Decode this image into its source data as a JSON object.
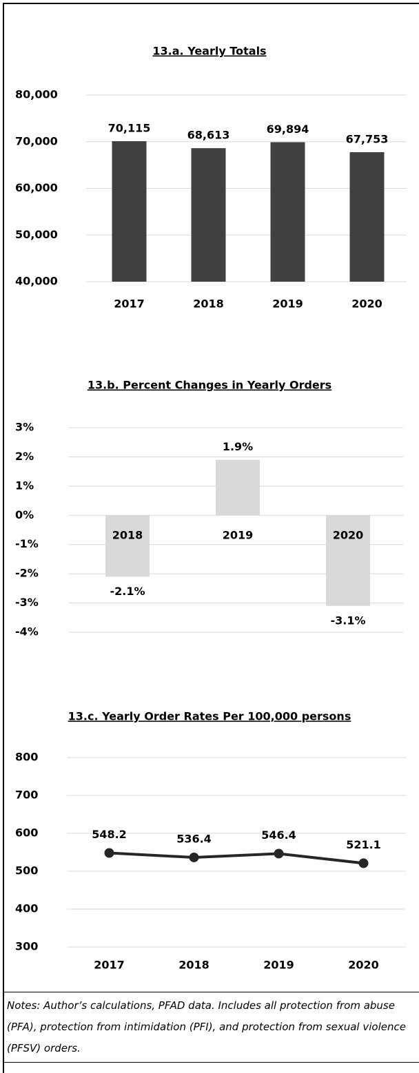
{
  "chart_data": [
    {
      "type": "bar",
      "title": "13.a. Yearly Totals",
      "categories": [
        "2017",
        "2018",
        "2019",
        "2020"
      ],
      "values": [
        70115,
        68613,
        69894,
        67753
      ],
      "value_labels": [
        "70,115",
        "68,613",
        "69,894",
        "67,753"
      ],
      "color": "#404040",
      "ylim": [
        40000,
        80000
      ],
      "yticks": [
        {
          "value": 40000,
          "label": "40,000"
        },
        {
          "value": 50000,
          "label": "50,000"
        },
        {
          "value": 60000,
          "label": "60,000"
        },
        {
          "value": 70000,
          "label": "70,000"
        },
        {
          "value": 80000,
          "label": "80,000"
        }
      ],
      "grid": true
    },
    {
      "type": "bar",
      "title": "13.b. Percent Changes in Yearly Orders",
      "categories": [
        "2018",
        "2019",
        "2020"
      ],
      "values": [
        -2.1,
        1.9,
        -3.1
      ],
      "value_labels": [
        "-2.1%",
        "1.9%",
        "-3.1%"
      ],
      "color": "#d9d9d9",
      "ylim": [
        -4,
        3
      ],
      "yticks": [
        {
          "value": -4,
          "label": "-4%"
        },
        {
          "value": -3,
          "label": "-3%"
        },
        {
          "value": -2,
          "label": "-2%"
        },
        {
          "value": -1,
          "label": "-1%"
        },
        {
          "value": 0,
          "label": "0%"
        },
        {
          "value": 1,
          "label": "1%"
        },
        {
          "value": 2,
          "label": "2%"
        },
        {
          "value": 3,
          "label": "3%"
        }
      ],
      "grid": true
    },
    {
      "type": "line",
      "title": "13.c. Yearly Order Rates Per 100,000 persons",
      "categories": [
        "2017",
        "2018",
        "2019",
        "2020"
      ],
      "values": [
        548.2,
        536.4,
        546.4,
        521.1
      ],
      "color": "#262626",
      "ylim": [
        300,
        800
      ],
      "yticks": [
        300,
        400,
        500,
        600,
        700,
        800
      ],
      "grid": true
    }
  ],
  "notes": "Notes:  Author’s calculations, PFAD data. Includes all protection from abuse (PFA), protection from intimidation (PFI), and protection from sexual violence (PFSV) orders."
}
